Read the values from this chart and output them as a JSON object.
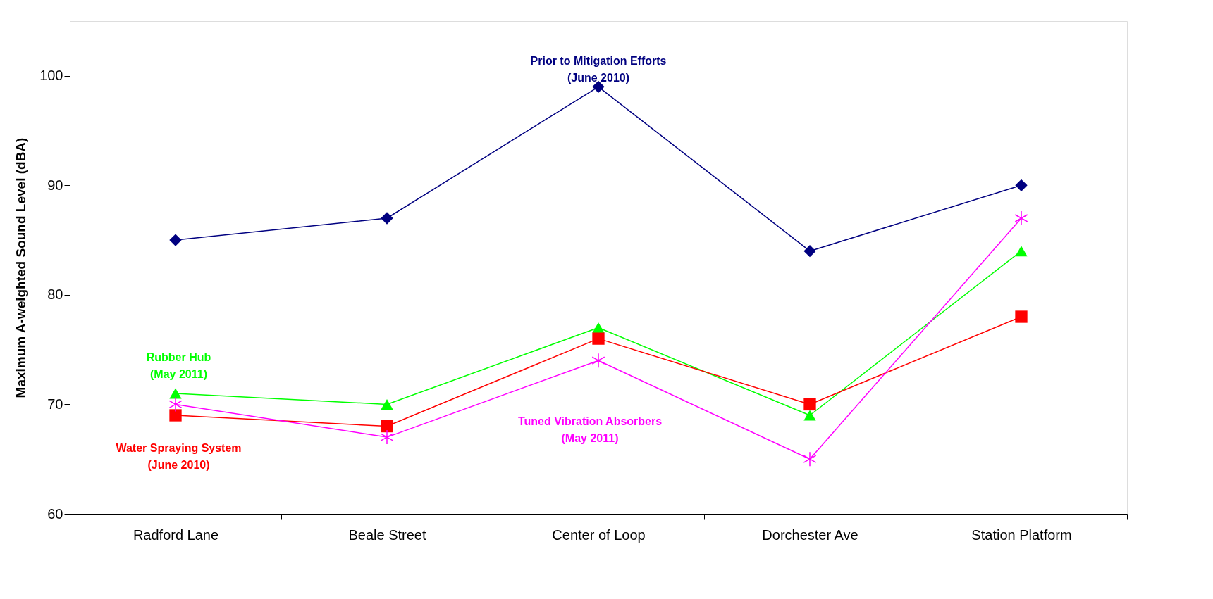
{
  "chart_data": {
    "type": "line",
    "ylabel": "Maximum A-weighted Sound Level (dBA)",
    "categories": [
      "Radford Lane",
      "Beale Street",
      "Center of Loop",
      "Dorchester Ave",
      "Station Platform"
    ],
    "series": [
      {
        "color": "#000080",
        "marker": "diamond",
        "values": [
          85,
          87,
          99,
          84,
          90
        ]
      },
      {
        "color": "#00ff00",
        "marker": "triangle",
        "values": [
          71,
          70,
          77,
          69,
          84
        ]
      },
      {
        "color": "#ff0000",
        "marker": "square",
        "values": [
          69,
          68,
          76,
          70,
          78
        ]
      },
      {
        "color": "#ff00ff",
        "marker": "cross",
        "values": [
          70,
          67,
          74,
          65,
          87
        ]
      }
    ],
    "annotations": [
      "Prior to Mitigation Efforts\n(June 2010)",
      "Rubber Hub\n(May 2011)",
      "Water Spraying System\n(June 2010)",
      "Tuned Vibration Absorbers\n(May 2011)"
    ],
    "ylim": [
      60,
      105
    ],
    "yticks": [
      60,
      70,
      80,
      90,
      100
    ],
    "grid": false
  }
}
